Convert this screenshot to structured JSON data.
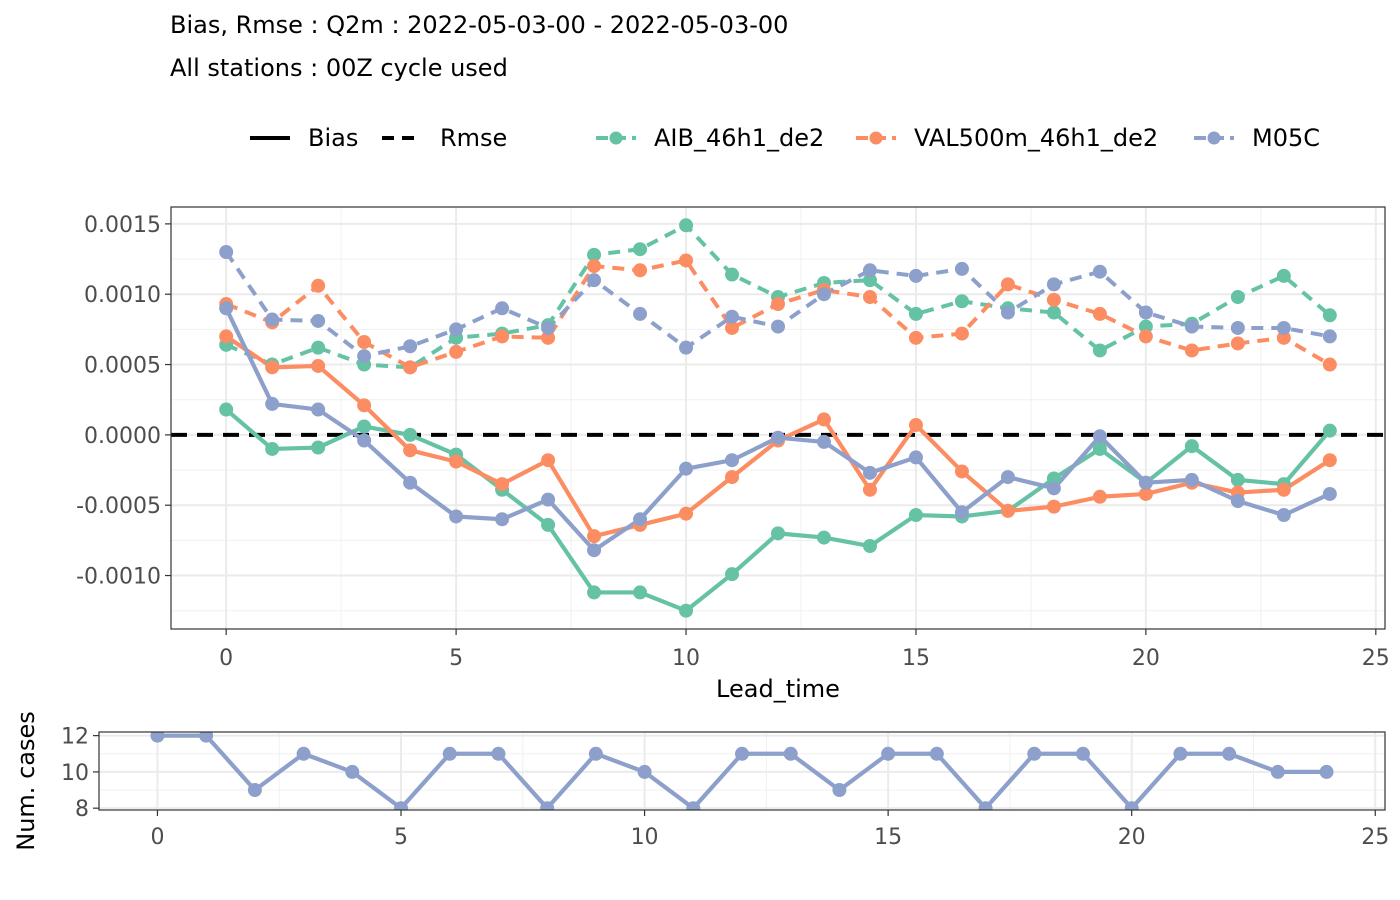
{
  "title_line1": "Bias, Rmse : Q2m : 2022-05-03-00 - 2022-05-03-00",
  "title_line2": "All stations : 00Z cycle used",
  "legend": {
    "linetypes": [
      {
        "name": "Bias",
        "style": "solid"
      },
      {
        "name": "Rmse",
        "style": "dashed"
      }
    ],
    "models": [
      {
        "name": "AIB_46h1_de2",
        "color": "#66c2a5"
      },
      {
        "name": "VAL500m_46h1_de2",
        "color": "#fc8d62"
      },
      {
        "name": "M05C",
        "color": "#8da0cb"
      }
    ]
  },
  "chart_data": [
    {
      "type": "line",
      "name": "main-panel",
      "xlabel": "Lead_time",
      "ylabel": "",
      "xlim": [
        -1.2,
        25.2
      ],
      "ylim": [
        -0.00138,
        0.00162
      ],
      "xticks": [
        0,
        5,
        10,
        15,
        20,
        25
      ],
      "yticks": [
        {
          "value": -0.001,
          "label": "-0.0010"
        },
        {
          "value": -0.0005,
          "label": "-0.0005"
        },
        {
          "value": 0,
          "label": "0.0000"
        },
        {
          "value": 0.0005,
          "label": "0.0005"
        },
        {
          "value": 0.001,
          "label": "0.0010"
        },
        {
          "value": 0.0015,
          "label": "0.0015"
        }
      ],
      "grid": true,
      "zero_line": {
        "value": 0,
        "style": "dashed",
        "color": "#000000"
      },
      "x": [
        0,
        1,
        2,
        3,
        4,
        5,
        6,
        7,
        8,
        9,
        10,
        11,
        12,
        13,
        14,
        15,
        16,
        17,
        18,
        19,
        20,
        21,
        22,
        23,
        24
      ],
      "series": [
        {
          "model": "AIB_46h1_de2",
          "metric": "Bias",
          "color": "#66c2a5",
          "values": [
            0.00018,
            -0.0001,
            -9e-05,
            6e-05,
            0.0,
            -0.00014,
            -0.00039,
            -0.00064,
            -0.00112,
            -0.00112,
            -0.00125,
            -0.00099,
            -0.0007,
            -0.00073,
            -0.00079,
            -0.00057,
            -0.00058,
            -0.00054,
            -0.00031,
            -0.0001,
            -0.00034,
            -8e-05,
            -0.00032,
            -0.00035,
            3e-05
          ]
        },
        {
          "model": "VAL500m_46h1_de2",
          "metric": "Bias",
          "color": "#fc8d62",
          "values": [
            0.0007,
            0.00048,
            0.00049,
            0.00021,
            -0.00011,
            -0.00019,
            -0.00035,
            -0.00018,
            -0.00072,
            -0.00064,
            -0.00056,
            -0.0003,
            -4e-05,
            0.00011,
            -0.00039,
            7e-05,
            -0.00026,
            -0.00054,
            -0.00051,
            -0.00044,
            -0.00042,
            -0.00034,
            -0.00041,
            -0.00039,
            -0.00018
          ]
        },
        {
          "model": "M05C",
          "metric": "Bias",
          "color": "#8da0cb",
          "values": [
            0.0009,
            0.00022,
            0.00018,
            -4e-05,
            -0.00034,
            -0.00058,
            -0.0006,
            -0.00046,
            -0.00082,
            -0.0006,
            -0.00024,
            -0.00018,
            -2e-05,
            -5e-05,
            -0.00027,
            -0.00016,
            -0.00055,
            -0.0003,
            -0.00038,
            -1e-05,
            -0.00034,
            -0.00032,
            -0.00047,
            -0.00057,
            -0.00042
          ]
        },
        {
          "model": "AIB_46h1_de2",
          "metric": "Rmse",
          "color": "#66c2a5",
          "values": [
            0.00064,
            0.0005,
            0.00062,
            0.0005,
            0.00048,
            0.00069,
            0.00072,
            0.00078,
            0.00128,
            0.00132,
            0.00149,
            0.00114,
            0.00098,
            0.00108,
            0.0011,
            0.00086,
            0.00095,
            0.0009,
            0.00087,
            0.0006,
            0.00077,
            0.00079,
            0.00098,
            0.00113,
            0.00085
          ]
        },
        {
          "model": "VAL500m_46h1_de2",
          "metric": "Rmse",
          "color": "#fc8d62",
          "values": [
            0.00093,
            0.0008,
            0.00106,
            0.00066,
            0.00048,
            0.00059,
            0.0007,
            0.00069,
            0.0012,
            0.00117,
            0.00124,
            0.00076,
            0.00093,
            0.00103,
            0.00098,
            0.00069,
            0.00072,
            0.00107,
            0.00096,
            0.00086,
            0.0007,
            0.0006,
            0.00065,
            0.00069,
            0.0005
          ]
        },
        {
          "model": "M05C",
          "metric": "Rmse",
          "color": "#8da0cb",
          "values": [
            0.0013,
            0.00082,
            0.00081,
            0.00056,
            0.00063,
            0.00075,
            0.0009,
            0.00076,
            0.0011,
            0.00086,
            0.00062,
            0.00084,
            0.00077,
            0.001,
            0.00117,
            0.00113,
            0.00118,
            0.00087,
            0.00107,
            0.00116,
            0.00087,
            0.00077,
            0.00076,
            0.00076,
            0.0007
          ]
        }
      ]
    },
    {
      "type": "line",
      "name": "num-cases-panel",
      "xlabel": "",
      "ylabel": "Num. cases",
      "xlim": [
        -1.2,
        25.2
      ],
      "ylim": [
        7.9,
        12.2
      ],
      "xticks": [
        0,
        5,
        10,
        15,
        20,
        25
      ],
      "yticks": [
        {
          "value": 8,
          "label": "8"
        },
        {
          "value": 10,
          "label": "10"
        },
        {
          "value": 12,
          "label": "12"
        }
      ],
      "grid": true,
      "x": [
        0,
        1,
        2,
        3,
        4,
        5,
        6,
        7,
        8,
        9,
        10,
        11,
        12,
        13,
        14,
        15,
        16,
        17,
        18,
        19,
        20,
        21,
        22,
        23,
        24
      ],
      "series": [
        {
          "model": "M05C",
          "color": "#8da0cb",
          "values": [
            12,
            12,
            9,
            11,
            10,
            8,
            11,
            11,
            8,
            11,
            10,
            8,
            11,
            11,
            9,
            11,
            11,
            8,
            11,
            11,
            8,
            11,
            11,
            10,
            10
          ]
        }
      ]
    }
  ]
}
